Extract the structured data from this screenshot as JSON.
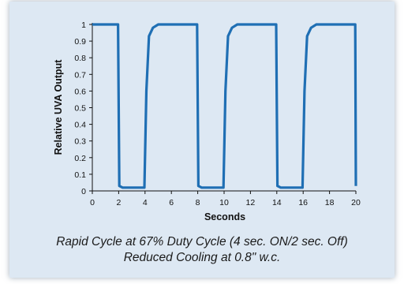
{
  "chart_data": {
    "type": "line",
    "title": "",
    "xlabel": "Seconds",
    "ylabel": "Relative UVA Output",
    "xlim": [
      0,
      20
    ],
    "ylim": [
      0,
      1
    ],
    "xticks": [
      "0",
      "2",
      "4",
      "6",
      "8",
      "10",
      "12",
      "14",
      "16",
      "18",
      "20"
    ],
    "yticks": [
      "0",
      "0.1",
      "0.2",
      "0.3",
      "0.4",
      "0.5",
      "0.6",
      "0.7",
      "0.8",
      "0.9",
      "1"
    ],
    "grid": false,
    "legend": "none",
    "series": [
      {
        "color": "#1f6fb4",
        "x": [
          0,
          1.95,
          2.05,
          2.3,
          3.0,
          3.95,
          4.1,
          4.3,
          4.6,
          5.0,
          7.95,
          8.05,
          8.3,
          9.0,
          9.95,
          10.1,
          10.3,
          10.6,
          11.0,
          13.95,
          14.05,
          14.3,
          15.0,
          15.95,
          16.1,
          16.3,
          16.6,
          17.0,
          19.95,
          20.0
        ],
        "y": [
          1,
          1,
          0.03,
          0.02,
          0.02,
          0.02,
          0.6,
          0.93,
          0.98,
          1,
          1,
          0.03,
          0.02,
          0.02,
          0.02,
          0.6,
          0.93,
          0.98,
          1,
          1,
          0.03,
          0.02,
          0.02,
          0.02,
          0.6,
          0.93,
          0.98,
          1,
          1,
          0.03
        ]
      }
    ]
  },
  "caption": {
    "line1": "Rapid Cycle at 67% Duty Cycle (4 sec. ON/2 sec. Off)",
    "line2": "Reduced Cooling at 0.8\" w.c."
  }
}
